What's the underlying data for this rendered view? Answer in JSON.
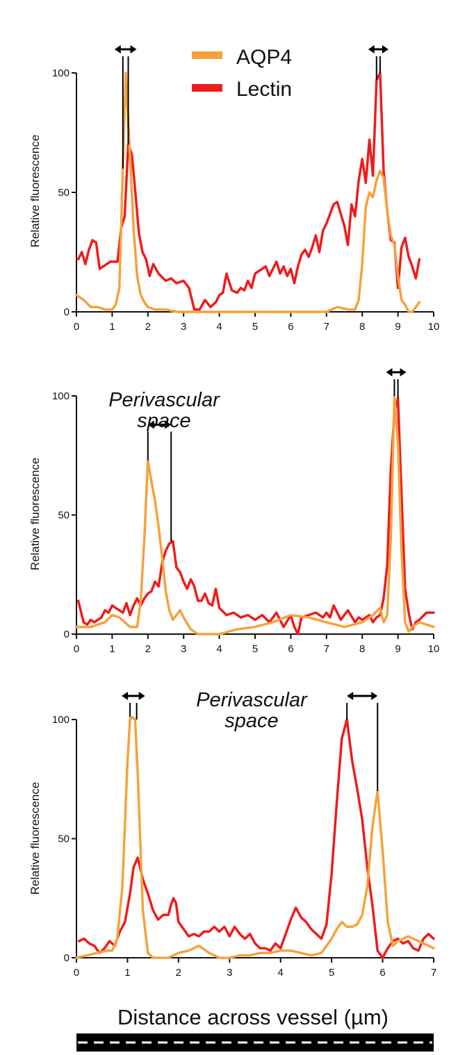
{
  "colors": {
    "AQP4": "#f5a23c",
    "Lectin": "#ee1c1c",
    "axis": "#111111",
    "bar": "#000000",
    "dash": "#ffffff"
  },
  "legend": {
    "items": [
      {
        "name": "AQP4",
        "color": "#f5a23c"
      },
      {
        "name": "Lectin",
        "color": "#ee1c1c"
      }
    ]
  },
  "xaxis_title": "Distance across vessel (µm)",
  "chart_data": [
    {
      "type": "line",
      "ylabel": "Relative fluorescence",
      "xlim": [
        0,
        10
      ],
      "ylim": [
        0,
        100
      ],
      "xticks": [
        0,
        1,
        2,
        3,
        4,
        5,
        6,
        7,
        8,
        9,
        10
      ],
      "yticks": [
        0,
        50,
        100
      ],
      "annotation": "",
      "gaps": [
        {
          "x1": 1.3,
          "x2": 1.45,
          "top": 100
        },
        {
          "x1": 8.4,
          "x2": 8.5,
          "top": 100
        }
      ],
      "series": [
        {
          "name": "Lectin",
          "x": [
            0.05,
            0.15,
            0.25,
            0.35,
            0.45,
            0.55,
            0.65,
            0.75,
            0.85,
            0.95,
            1.05,
            1.15,
            1.25,
            1.35,
            1.45,
            1.55,
            1.65,
            1.75,
            1.85,
            1.95,
            2.05,
            2.15,
            2.3,
            2.5,
            2.65,
            2.8,
            3.0,
            3.15,
            3.3,
            3.45,
            3.6,
            3.75,
            3.9,
            4.0,
            4.1,
            4.2,
            4.35,
            4.5,
            4.6,
            4.7,
            4.8,
            4.9,
            5.0,
            5.1,
            5.2,
            5.3,
            5.4,
            5.5,
            5.6,
            5.7,
            5.8,
            5.9,
            6.0,
            6.1,
            6.2,
            6.3,
            6.4,
            6.5,
            6.6,
            6.7,
            6.8,
            6.9,
            7.0,
            7.1,
            7.2,
            7.3,
            7.4,
            7.5,
            7.6,
            7.7,
            7.8,
            7.9,
            8.0,
            8.1,
            8.2,
            8.3,
            8.4,
            8.5,
            8.6,
            8.7,
            8.8,
            8.9,
            9.0,
            9.1,
            9.2,
            9.3,
            9.4,
            9.5,
            9.6
          ],
          "y": [
            22,
            25,
            20,
            26,
            30,
            29,
            18,
            19,
            20,
            21,
            21,
            21,
            35,
            40,
            70,
            66,
            50,
            33,
            25,
            22,
            15,
            20,
            16,
            13,
            14,
            12,
            13,
            10,
            1,
            1,
            5,
            2,
            4,
            7,
            8,
            16,
            9,
            8,
            10,
            9,
            13,
            10,
            16,
            17,
            18,
            19,
            15,
            18,
            21,
            16,
            19,
            15,
            18,
            12,
            19,
            24,
            26,
            23,
            27,
            32,
            25,
            34,
            37,
            41,
            45,
            46,
            41,
            36,
            28,
            45,
            40,
            55,
            64,
            54,
            72,
            57,
            97,
            100,
            59,
            42,
            30,
            29,
            10,
            27,
            31,
            23,
            19,
            14,
            22
          ]
        },
        {
          "name": "AQP4",
          "x": [
            0.0,
            0.2,
            0.4,
            0.6,
            0.8,
            1.0,
            1.1,
            1.2,
            1.3,
            1.38,
            1.5,
            1.6,
            1.7,
            1.8,
            1.9,
            2.0,
            2.2,
            2.5,
            2.8,
            3.0,
            3.5,
            4.0,
            4.5,
            5.0,
            5.5,
            6.0,
            6.5,
            7.0,
            7.3,
            7.6,
            7.8,
            7.9,
            8.0,
            8.1,
            8.2,
            8.3,
            8.4,
            8.5,
            8.6,
            8.7,
            8.8,
            8.9,
            9.0,
            9.1,
            9.2,
            9.3,
            9.4,
            9.5,
            9.6
          ],
          "y": [
            7,
            5,
            2,
            2,
            1,
            1,
            3,
            10,
            60,
            100,
            65,
            35,
            15,
            7,
            4,
            2,
            1,
            1,
            0,
            0,
            0,
            0,
            0,
            0,
            0,
            0,
            0,
            0,
            2,
            1,
            1,
            5,
            20,
            44,
            50,
            48,
            55,
            59,
            56,
            42,
            32,
            28,
            15,
            5,
            3,
            0,
            0,
            2,
            4
          ]
        }
      ]
    },
    {
      "type": "line",
      "ylabel": "Relative fluorescence",
      "xlim": [
        0,
        10
      ],
      "ylim": [
        0,
        100
      ],
      "xticks": [
        0,
        1,
        2,
        3,
        4,
        5,
        6,
        7,
        8,
        9,
        10
      ],
      "yticks": [
        0,
        50,
        100
      ],
      "annotation": "Perivascular space",
      "gaps": [
        {
          "x1": 2.0,
          "x2": 2.65,
          "top": 78
        },
        {
          "x1": 8.9,
          "x2": 9.0,
          "top": 100
        }
      ],
      "series": [
        {
          "name": "Lectin",
          "x": [
            0.05,
            0.2,
            0.3,
            0.4,
            0.5,
            0.6,
            0.7,
            0.8,
            0.9,
            1.0,
            1.1,
            1.2,
            1.3,
            1.4,
            1.5,
            1.6,
            1.7,
            1.8,
            1.9,
            2.0,
            2.1,
            2.2,
            2.3,
            2.4,
            2.5,
            2.6,
            2.7,
            2.8,
            2.9,
            3.0,
            3.1,
            3.2,
            3.3,
            3.4,
            3.5,
            3.6,
            3.7,
            3.8,
            3.9,
            4.0,
            4.2,
            4.4,
            4.6,
            4.8,
            5.0,
            5.2,
            5.4,
            5.6,
            5.8,
            6.0,
            6.1,
            6.2,
            6.3,
            6.5,
            6.7,
            6.9,
            7.0,
            7.1,
            7.2,
            7.4,
            7.6,
            7.8,
            7.9,
            8.0,
            8.2,
            8.3,
            8.4,
            8.5,
            8.6,
            8.7,
            8.8,
            8.9,
            9.0,
            9.1,
            9.2,
            9.3,
            9.4,
            9.5,
            9.6,
            9.8,
            10.0
          ],
          "y": [
            14,
            5,
            4,
            6,
            5,
            6,
            7,
            10,
            9,
            12,
            11,
            10,
            9,
            13,
            8,
            12,
            15,
            12,
            15,
            17,
            18,
            22,
            20,
            30,
            35,
            38,
            39,
            28,
            26,
            22,
            19,
            23,
            20,
            14,
            14,
            17,
            13,
            12,
            19,
            11,
            8,
            9,
            7,
            8,
            6,
            8,
            5,
            9,
            3,
            8,
            3,
            0,
            7,
            8,
            9,
            7,
            9,
            7,
            12,
            6,
            10,
            5,
            7,
            6,
            8,
            5,
            7,
            8,
            15,
            29,
            69,
            93,
            99,
            59,
            19,
            9,
            2,
            5,
            6,
            9,
            9
          ]
        },
        {
          "name": "AQP4",
          "x": [
            0.0,
            0.4,
            0.8,
            1.0,
            1.2,
            1.5,
            1.7,
            1.8,
            1.9,
            2.0,
            2.1,
            2.2,
            2.3,
            2.4,
            2.5,
            2.6,
            2.7,
            2.8,
            2.9,
            3.0,
            3.2,
            3.4,
            3.6,
            4.0,
            4.5,
            5.0,
            5.5,
            6.0,
            6.5,
            7.0,
            7.5,
            8.0,
            8.3,
            8.5,
            8.6,
            8.7,
            8.8,
            8.9,
            9.0,
            9.1,
            9.2,
            9.3,
            9.4,
            9.6,
            10.0
          ],
          "y": [
            3,
            3,
            5,
            8,
            7,
            3,
            3,
            14,
            40,
            73,
            64,
            56,
            45,
            32,
            18,
            10,
            6,
            8,
            10,
            7,
            2,
            0,
            0,
            0,
            2,
            3,
            5,
            8,
            7,
            5,
            3,
            5,
            8,
            11,
            5,
            8,
            40,
            100,
            80,
            35,
            5,
            1,
            3,
            5,
            3
          ]
        }
      ]
    },
    {
      "type": "line",
      "ylabel": "Relative fluorescence",
      "xlim": [
        0,
        7
      ],
      "ylim": [
        0,
        100
      ],
      "xticks": [
        0,
        1,
        2,
        3,
        4,
        5,
        6,
        7
      ],
      "yticks": [
        0,
        50,
        100
      ],
      "annotation": "Perivascular space",
      "gaps": [
        {
          "x1": 1.05,
          "x2": 1.18,
          "top": 100
        },
        {
          "x1": 5.3,
          "x2": 5.9,
          "top": 100
        }
      ],
      "series": [
        {
          "name": "Lectin",
          "x": [
            0.05,
            0.15,
            0.25,
            0.35,
            0.45,
            0.55,
            0.65,
            0.75,
            0.85,
            0.95,
            1.05,
            1.12,
            1.2,
            1.3,
            1.4,
            1.5,
            1.6,
            1.7,
            1.8,
            1.85,
            1.9,
            1.95,
            2.0,
            2.1,
            2.2,
            2.3,
            2.4,
            2.5,
            2.6,
            2.7,
            2.8,
            2.9,
            3.0,
            3.1,
            3.2,
            3.3,
            3.4,
            3.5,
            3.6,
            3.7,
            3.8,
            3.9,
            4.0,
            4.1,
            4.2,
            4.3,
            4.4,
            4.5,
            4.6,
            4.7,
            4.8,
            4.9,
            5.0,
            5.1,
            5.2,
            5.3,
            5.4,
            5.5,
            5.6,
            5.7,
            5.8,
            5.9,
            6.0,
            6.1,
            6.2,
            6.3,
            6.4,
            6.5,
            6.6,
            6.7,
            6.8,
            6.9,
            7.0
          ],
          "y": [
            7,
            8,
            6,
            5,
            2,
            4,
            7,
            5,
            11,
            15,
            27,
            38,
            42,
            33,
            27,
            20,
            16,
            18,
            18,
            22,
            25,
            23,
            15,
            12,
            9,
            10,
            9,
            11,
            11,
            13,
            11,
            13,
            9,
            13,
            10,
            8,
            10,
            6,
            4,
            4,
            3,
            6,
            4,
            10,
            16,
            21,
            17,
            15,
            12,
            10,
            8,
            14,
            35,
            65,
            92,
            100,
            83,
            71,
            58,
            38,
            22,
            3,
            0,
            4,
            7,
            8,
            6,
            7,
            4,
            3,
            8,
            10,
            8
          ]
        },
        {
          "name": "AQP4",
          "x": [
            0.0,
            0.2,
            0.4,
            0.6,
            0.7,
            0.8,
            0.9,
            1.0,
            1.05,
            1.1,
            1.15,
            1.2,
            1.3,
            1.4,
            1.5,
            1.6,
            1.8,
            2.0,
            2.2,
            2.4,
            2.6,
            2.8,
            3.0,
            3.2,
            3.4,
            3.6,
            3.8,
            4.0,
            4.2,
            4.4,
            4.6,
            4.8,
            5.0,
            5.1,
            5.2,
            5.3,
            5.4,
            5.5,
            5.6,
            5.7,
            5.8,
            5.9,
            6.0,
            6.1,
            6.2,
            6.3,
            6.5,
            6.7,
            6.9,
            7.0
          ],
          "y": [
            0,
            1,
            2,
            3,
            3,
            8,
            30,
            82,
            100,
            101,
            100,
            78,
            20,
            2,
            0,
            0,
            0,
            2,
            3,
            5,
            2,
            0,
            0,
            1,
            1,
            2,
            2,
            3,
            3,
            2,
            1,
            2,
            8,
            12,
            15,
            13,
            13,
            14,
            18,
            30,
            55,
            70,
            45,
            15,
            5,
            7,
            9,
            7,
            5,
            4
          ]
        }
      ]
    }
  ]
}
